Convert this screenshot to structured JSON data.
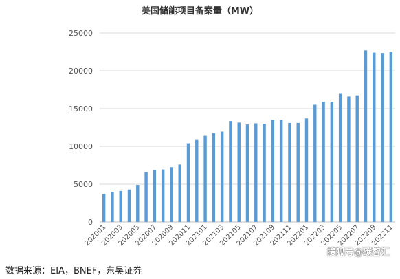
{
  "chart_data": {
    "type": "bar",
    "title": "美国储能项目备案量（MW）",
    "xlabel": "",
    "ylabel": "",
    "ylim": [
      0,
      25000
    ],
    "yticks": [
      0,
      5000,
      10000,
      15000,
      20000,
      25000
    ],
    "grid": "horizontal",
    "bar_color": "#5b9bd5",
    "categories": [
      "202001",
      "202002",
      "202003",
      "202004",
      "202005",
      "202006",
      "202007",
      "202008",
      "202009",
      "202010",
      "202011",
      "202012",
      "202101",
      "202102",
      "202103",
      "202104",
      "202105",
      "202106",
      "202107",
      "202108",
      "202109",
      "202110",
      "202111",
      "202112",
      "202201",
      "202202",
      "202203",
      "202204",
      "202205",
      "202206",
      "202207",
      "202208",
      "202209",
      "202210",
      "202211"
    ],
    "x_tick_labels": [
      "202001",
      "",
      "202003",
      "",
      "202005",
      "",
      "202007",
      "",
      "202009",
      "",
      "202011",
      "",
      "202101",
      "",
      "202103",
      "",
      "202105",
      "",
      "202107",
      "",
      "202109",
      "",
      "202111",
      "",
      "202201",
      "",
      "202203",
      "",
      "202205",
      "",
      "202207",
      "",
      "202209",
      "",
      "202211"
    ],
    "values": [
      3700,
      4000,
      4100,
      4300,
      4900,
      6600,
      6850,
      6950,
      7250,
      7600,
      10400,
      10850,
      11400,
      11750,
      11950,
      13350,
      13150,
      12900,
      13050,
      13000,
      13500,
      13500,
      13100,
      13100,
      13700,
      15500,
      15900,
      15900,
      16950,
      16600,
      16750,
      22700,
      22400,
      22350,
      22500
    ]
  },
  "source": "数据来源：EIA，BNEF，东吴证券",
  "watermark": "搜狐号@碳智汇"
}
